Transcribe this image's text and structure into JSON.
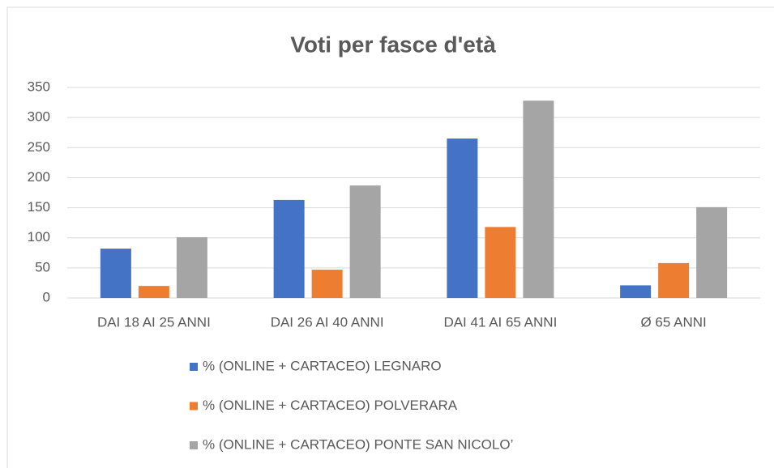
{
  "chart_data": {
    "type": "bar",
    "title": "Voti per fasce d'età",
    "categories": [
      "DAI 18 AI 25 ANNI",
      "DAI 26 AI 40 ANNI",
      "DAI 41 AI 65 ANNI",
      "Ø  65 ANNI"
    ],
    "series": [
      {
        "name": "% (ONLINE + CARTACEO) LEGNARO",
        "color": "#4472c4",
        "values": [
          82,
          163,
          265,
          21
        ]
      },
      {
        "name": "% (ONLINE + CARTACEO) POLVERARA",
        "color": "#ed7d31",
        "values": [
          20,
          47,
          118,
          58
        ]
      },
      {
        "name": "% (ONLINE + CARTACEO) PONTE SAN NICOLO’",
        "color": "#a5a5a5",
        "values": [
          101,
          187,
          328,
          151
        ]
      }
    ],
    "ylim": [
      0,
      350
    ],
    "yticks": [
      0,
      50,
      100,
      150,
      200,
      250,
      300,
      350
    ],
    "grid": true,
    "legend": "bottom"
  }
}
